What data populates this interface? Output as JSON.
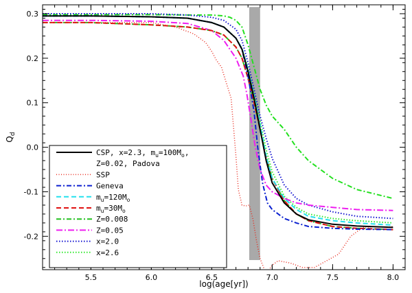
{
  "chart_data": {
    "type": "line",
    "xlabel": "log(age[yr])",
    "ylabel": "Q",
    "ylabel_sub": "d",
    "xlim": [
      5.1,
      8.1
    ],
    "ylim": [
      -0.275,
      0.32
    ],
    "xticks": [
      5.5,
      6.0,
      6.5,
      7.0,
      7.5,
      8.0
    ],
    "xtick_labels": [
      "5.5",
      "6.0",
      "6.5",
      "7.0",
      "7.5",
      "8.0"
    ],
    "yticks": [
      0.3,
      0.2,
      0.1,
      0.0,
      -0.1,
      -0.2
    ],
    "ytick_labels": [
      "0.3",
      "0.2",
      "0.1",
      "0.0",
      "-0.1",
      "-0.2"
    ],
    "shaded_band": {
      "x": [
        6.81,
        6.9
      ],
      "color": "#a9a9a9"
    },
    "legend_position": "bottom-left",
    "series": [
      {
        "name": "CSP, x=2.3, m_u=100M_o, Z=0.02, Padova",
        "legend_lines": [
          {
            "base": "CSP, x=2.3, m",
            "sub": "u",
            "rest": "=100M",
            "sub2": "o",
            "end": ","
          },
          {
            "base": " Z=0.02, Padova"
          }
        ],
        "color": "#000000",
        "dash": "",
        "width": 2,
        "x": [
          5.1,
          5.5,
          6.0,
          6.3,
          6.5,
          6.6,
          6.7,
          6.75,
          6.8,
          6.85,
          6.9,
          6.95,
          7.0,
          7.1,
          7.2,
          7.3,
          7.5,
          7.7,
          8.0
        ],
        "y": [
          0.295,
          0.295,
          0.293,
          0.29,
          0.28,
          0.27,
          0.245,
          0.22,
          0.17,
          0.11,
          0.04,
          -0.03,
          -0.08,
          -0.125,
          -0.15,
          -0.163,
          -0.173,
          -0.177,
          -0.18
        ]
      },
      {
        "name": "SSP",
        "legend_lines": [
          {
            "base": "SSP"
          }
        ],
        "color": "#e8291c",
        "dash": "1,2.5",
        "width": 1.5,
        "x": [
          5.1,
          5.5,
          6.0,
          6.2,
          6.35,
          6.45,
          6.5,
          6.54,
          6.58,
          6.62,
          6.66,
          6.7,
          6.72,
          6.75,
          6.78,
          6.81,
          6.84,
          6.87,
          6.9,
          6.95,
          7.0,
          7.05,
          7.15,
          7.25,
          7.35,
          7.45,
          7.55,
          7.65,
          7.75,
          7.85,
          7.95,
          8.0
        ],
        "y": [
          0.28,
          0.28,
          0.28,
          0.27,
          0.255,
          0.235,
          0.215,
          0.195,
          0.18,
          0.145,
          0.11,
          -0.02,
          -0.095,
          -0.13,
          -0.132,
          -0.13,
          -0.16,
          -0.21,
          -0.25,
          -0.285,
          -0.265,
          -0.255,
          -0.26,
          -0.27,
          -0.27,
          -0.255,
          -0.24,
          -0.2,
          -0.18,
          -0.178,
          -0.18,
          -0.178
        ]
      },
      {
        "name": "Geneva",
        "legend_lines": [
          {
            "base": "Geneva"
          }
        ],
        "color": "#0a1fcf",
        "dash": "7,3,2,3",
        "width": 2,
        "x": [
          5.1,
          5.5,
          6.0,
          6.3,
          6.5,
          6.6,
          6.7,
          6.75,
          6.8,
          6.85,
          6.88,
          6.92,
          6.96,
          7.0,
          7.1,
          7.2,
          7.3,
          7.5,
          7.7,
          8.0
        ],
        "y": [
          0.295,
          0.295,
          0.293,
          0.29,
          0.28,
          0.27,
          0.245,
          0.22,
          0.16,
          0.08,
          0.0,
          -0.08,
          -0.125,
          -0.14,
          -0.16,
          -0.17,
          -0.178,
          -0.182,
          -0.184,
          -0.185
        ]
      },
      {
        "name": "m_u=120M_o",
        "legend_lines": [
          {
            "base": "m",
            "sub": "u",
            "rest": "=120M",
            "sub2": "o"
          }
        ],
        "color": "#22e0ee",
        "dash": "7,4",
        "width": 2,
        "x": [
          5.1,
          5.5,
          6.0,
          6.3,
          6.5,
          6.6,
          6.7,
          6.75,
          6.8,
          6.85,
          6.9,
          6.95,
          7.0,
          7.1,
          7.2,
          7.3,
          7.5,
          7.7,
          8.0
        ],
        "y": [
          0.295,
          0.295,
          0.293,
          0.29,
          0.28,
          0.27,
          0.245,
          0.222,
          0.175,
          0.115,
          0.05,
          -0.02,
          -0.07,
          -0.115,
          -0.14,
          -0.155,
          -0.165,
          -0.17,
          -0.175
        ]
      },
      {
        "name": "m_u=30M_o",
        "legend_lines": [
          {
            "base": "m",
            "sub": "u",
            "rest": "=30M",
            "sub2": "o"
          }
        ],
        "color": "#e01010",
        "dash": "7,4",
        "width": 2,
        "x": [
          5.1,
          5.5,
          6.0,
          6.3,
          6.5,
          6.6,
          6.7,
          6.75,
          6.8,
          6.85,
          6.9,
          6.95,
          7.0,
          7.1,
          7.2,
          7.3,
          7.5,
          7.7,
          8.0
        ],
        "y": [
          0.28,
          0.28,
          0.275,
          0.27,
          0.262,
          0.252,
          0.225,
          0.2,
          0.155,
          0.1,
          0.04,
          -0.02,
          -0.07,
          -0.12,
          -0.15,
          -0.165,
          -0.178,
          -0.182,
          -0.185
        ]
      },
      {
        "name": "Z=0.008",
        "legend_lines": [
          {
            "base": "Z=0.008"
          }
        ],
        "color": "#22c01e",
        "dash": "7,3,2,3",
        "width": 2,
        "x": [
          5.1,
          5.5,
          6.0,
          6.3,
          6.5,
          6.6,
          6.7,
          6.75,
          6.8,
          6.85,
          6.9,
          6.95,
          7.0,
          7.1,
          7.2,
          7.3,
          7.5,
          7.7,
          8.0
        ],
        "y": [
          0.28,
          0.28,
          0.275,
          0.27,
          0.262,
          0.252,
          0.225,
          0.2,
          0.155,
          0.1,
          0.04,
          -0.02,
          -0.07,
          -0.12,
          -0.15,
          -0.165,
          -0.178,
          -0.182,
          -0.185
        ]
      },
      {
        "name": "Z=0.05",
        "legend_lines": [
          {
            "base": "Z=0.05"
          }
        ],
        "color": "#ee1ef0",
        "dash": "9,3,2,3",
        "width": 2,
        "x": [
          5.1,
          5.5,
          6.0,
          6.3,
          6.5,
          6.6,
          6.7,
          6.73,
          6.76,
          6.79,
          6.82,
          6.86,
          6.9,
          6.95,
          7.0,
          7.1,
          7.2,
          7.3,
          7.5,
          7.7,
          8.0
        ],
        "y": [
          0.285,
          0.285,
          0.283,
          0.278,
          0.262,
          0.24,
          0.2,
          0.18,
          0.16,
          0.12,
          0.07,
          0.0,
          -0.05,
          -0.085,
          -0.1,
          -0.115,
          -0.125,
          -0.13,
          -0.135,
          -0.14,
          -0.142
        ]
      },
      {
        "name": "x=2.0",
        "legend_lines": [
          {
            "base": "x=2.0"
          }
        ],
        "color": "#1010d0",
        "dash": "1.5,2.5",
        "width": 2,
        "x": [
          5.1,
          5.5,
          6.0,
          6.3,
          6.5,
          6.6,
          6.7,
          6.75,
          6.8,
          6.85,
          6.9,
          6.95,
          7.0,
          7.1,
          7.2,
          7.3,
          7.5,
          7.7,
          8.0
        ],
        "y": [
          0.3,
          0.3,
          0.3,
          0.297,
          0.292,
          0.285,
          0.265,
          0.24,
          0.19,
          0.13,
          0.07,
          0.02,
          -0.025,
          -0.085,
          -0.115,
          -0.13,
          -0.145,
          -0.155,
          -0.16
        ]
      },
      {
        "name": "x=2.6",
        "legend_lines": [
          {
            "base": "x=2.6"
          }
        ],
        "color": "#2ee82a",
        "dash": "1.5,2.5",
        "width": 2,
        "x": [
          5.1,
          5.5,
          6.0,
          6.3,
          6.5,
          6.6,
          6.7,
          6.75,
          6.8,
          6.85,
          6.9,
          6.95,
          7.0,
          7.1,
          7.2,
          7.3,
          7.5,
          7.7,
          8.0
        ],
        "y": [
          0.295,
          0.295,
          0.293,
          0.29,
          0.28,
          0.27,
          0.245,
          0.222,
          0.178,
          0.12,
          0.06,
          -0.005,
          -0.055,
          -0.11,
          -0.135,
          -0.15,
          -0.16,
          -0.165,
          -0.17
        ]
      },
      {
        "name": "Z=0.008 (upper branch)",
        "hidden_in_legend": true,
        "color": "#22e01e",
        "dash": "7,3,2,3",
        "width": 2,
        "x": [
          5.1,
          5.5,
          6.0,
          6.3,
          6.5,
          6.6,
          6.65,
          6.7,
          6.75,
          6.8,
          6.85,
          6.9,
          6.95,
          7.0,
          7.1,
          7.2,
          7.3,
          7.5,
          7.7,
          8.0
        ],
        "y": [
          0.298,
          0.298,
          0.298,
          0.297,
          0.297,
          0.295,
          0.292,
          0.285,
          0.27,
          0.23,
          0.18,
          0.13,
          0.095,
          0.07,
          0.04,
          0.0,
          -0.03,
          -0.07,
          -0.095,
          -0.115
        ]
      }
    ]
  }
}
